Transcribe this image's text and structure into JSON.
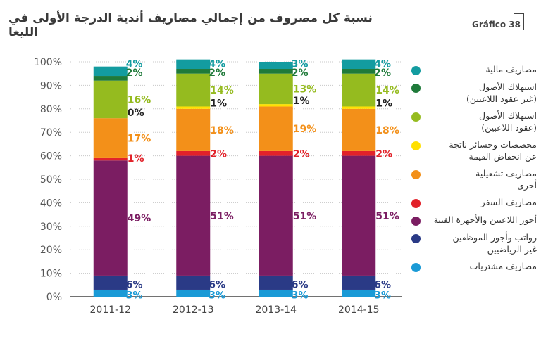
{
  "header": {
    "title": "نسبة كل مصروف من إجمالي مصاريف أندية الدرجة الأولى في الليغا",
    "figure_tag": "Gráfico 38"
  },
  "chart_data": {
    "type": "bar",
    "stacked": true,
    "categories": [
      "2011-12",
      "2012-13",
      "2013-14",
      "2014-15"
    ],
    "ylim": [
      0,
      100
    ],
    "yticks": [
      "0%",
      "10%",
      "20%",
      "30%",
      "40%",
      "50%",
      "60%",
      "70%",
      "80%",
      "90%",
      "100%"
    ],
    "grid": true,
    "legend_position": "right",
    "series": [
      {
        "name": "مصاريف مشتريات",
        "color": "#1a9ad6",
        "label_color": "#1a9ad6",
        "values": [
          3,
          3,
          3,
          3
        ],
        "labels": [
          "3%",
          "3%",
          "3%",
          "3%"
        ]
      },
      {
        "name": "رواتب وأجور الموظفين\nغير الرياضيين",
        "color": "#2a3a86",
        "label_color": "#2a3a86",
        "values": [
          6,
          6,
          6,
          6
        ],
        "labels": [
          "6%",
          "6%",
          "6%",
          "6%"
        ]
      },
      {
        "name": "أجور اللاعبين والأجهزة الفنية",
        "color": "#7b1d62",
        "label_color": "#7b1d62",
        "values": [
          49,
          51,
          51,
          51
        ],
        "labels": [
          "49%",
          "51%",
          "51%",
          "51%"
        ]
      },
      {
        "name": "مصاريف السفر",
        "color": "#e2222a",
        "label_color": "#e2222a",
        "values": [
          1,
          2,
          2,
          2
        ],
        "labels": [
          "1%",
          "2%",
          "2%",
          "2%"
        ]
      },
      {
        "name": "مصاريف تشغيلية\nأخرى",
        "color": "#f39019",
        "label_color": "#f39019",
        "values": [
          17,
          18,
          19,
          18
        ],
        "labels": [
          "17%",
          "18%",
          "19%",
          "18%"
        ]
      },
      {
        "name": "مخصصات وخسائر ناتجة\nعن انخفاض القيمة",
        "color": "#ffe000",
        "label_color": "#222222",
        "values": [
          0,
          1,
          1,
          1
        ],
        "labels": [
          "0%",
          "1%",
          "1%",
          "1%"
        ]
      },
      {
        "name": "استهلاك الأصول\n(عقود اللاعبين)",
        "color": "#95bb1f",
        "label_color": "#95bb1f",
        "values": [
          16,
          14,
          13,
          14
        ],
        "labels": [
          "16%",
          "14%",
          "13%",
          "14%"
        ]
      },
      {
        "name": "استهلاك الأصول\n(غير عقود اللاعبين)",
        "color": "#1f7a3a",
        "label_color": "#1f7a3a",
        "values": [
          2,
          2,
          2,
          2
        ],
        "labels": [
          "2%",
          "2%",
          "2%",
          "2%"
        ]
      },
      {
        "name": "مصاريف مالية",
        "color": "#139ca0",
        "label_color": "#139ca0",
        "values": [
          4,
          4,
          3,
          4
        ],
        "labels": [
          "4%",
          "4%",
          "3%",
          "4%"
        ]
      }
    ]
  }
}
